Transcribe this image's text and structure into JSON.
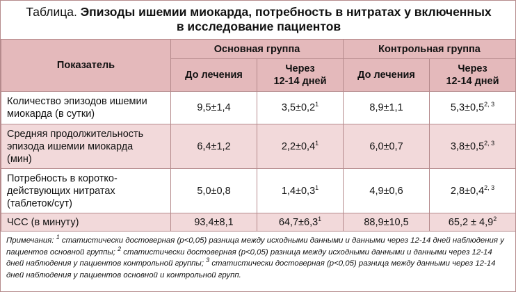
{
  "title": {
    "lead": "Таблица.",
    "main_line1": "Эпизоды ишемии миокарда, потребность в нитратах у включенных",
    "main_line2": "в исследование пациентов"
  },
  "header": {
    "param": "Показатель",
    "group1": "Основная группа",
    "group2": "Контрольная группа",
    "before": "До лечения",
    "after_line1": "Через",
    "after_line2": "12-14 дней"
  },
  "rows": [
    {
      "param_lines": [
        "Количество эпизодов ишемии",
        "миокарда (в сутки)"
      ],
      "v1": "9,5±1,4",
      "v2": "3,5±0,2",
      "v2_sup": "1",
      "v3": "8,9±1,1",
      "v4": "5,3±0,5",
      "v4_sup": "2, 3"
    },
    {
      "param_lines": [
        "Средняя продолжительность",
        "эпизода ишемии миокарда",
        "(мин)"
      ],
      "v1": "6,4±1,2",
      "v2": "2,2±0,4",
      "v2_sup": "1",
      "v3": "6,0±0,7",
      "v4": "3,8±0,5",
      "v4_sup": "2, 3"
    },
    {
      "param_lines": [
        "Потребность в коротко-",
        "действующих нитратах",
        "(таблеток/сут)"
      ],
      "v1": "5,0±0,8",
      "v2": "1,4±0,3",
      "v2_sup": "1",
      "v3": "4,9±0,6",
      "v4": "2,8±0,4",
      "v4_sup": "2, 3"
    },
    {
      "param_lines": [
        "ЧСС (в минуту)"
      ],
      "v1": "93,4±8,1",
      "v2": "64,7±6,3",
      "v2_sup": "1",
      "v3": "88,9±10,5",
      "v4": "65,2 ± 4,9",
      "v4_sup": "2"
    }
  ],
  "notes": {
    "label": "Примечания:",
    "sup1": "1",
    "text1": " статистически достоверная (р<0,05) разница между исходными данными и данными через 12-14 дней наблюдения у пациентов основной группы;",
    "sup2": "2",
    "text2": " статистически достоверная (р<0,05) разница между исходными данными и данными через 12-14 дней наблюдения у пациентов контрольной группы;",
    "sup3": "3",
    "text3": " статистически достоверная (р<0,05) разница между данными через 12-14 дней наблюдения у пациентов основной и контрольной групп."
  },
  "colors": {
    "border": "#b58a8c",
    "header_bg": "#e4b9bb",
    "alt_row_bg": "#f2d9da"
  }
}
